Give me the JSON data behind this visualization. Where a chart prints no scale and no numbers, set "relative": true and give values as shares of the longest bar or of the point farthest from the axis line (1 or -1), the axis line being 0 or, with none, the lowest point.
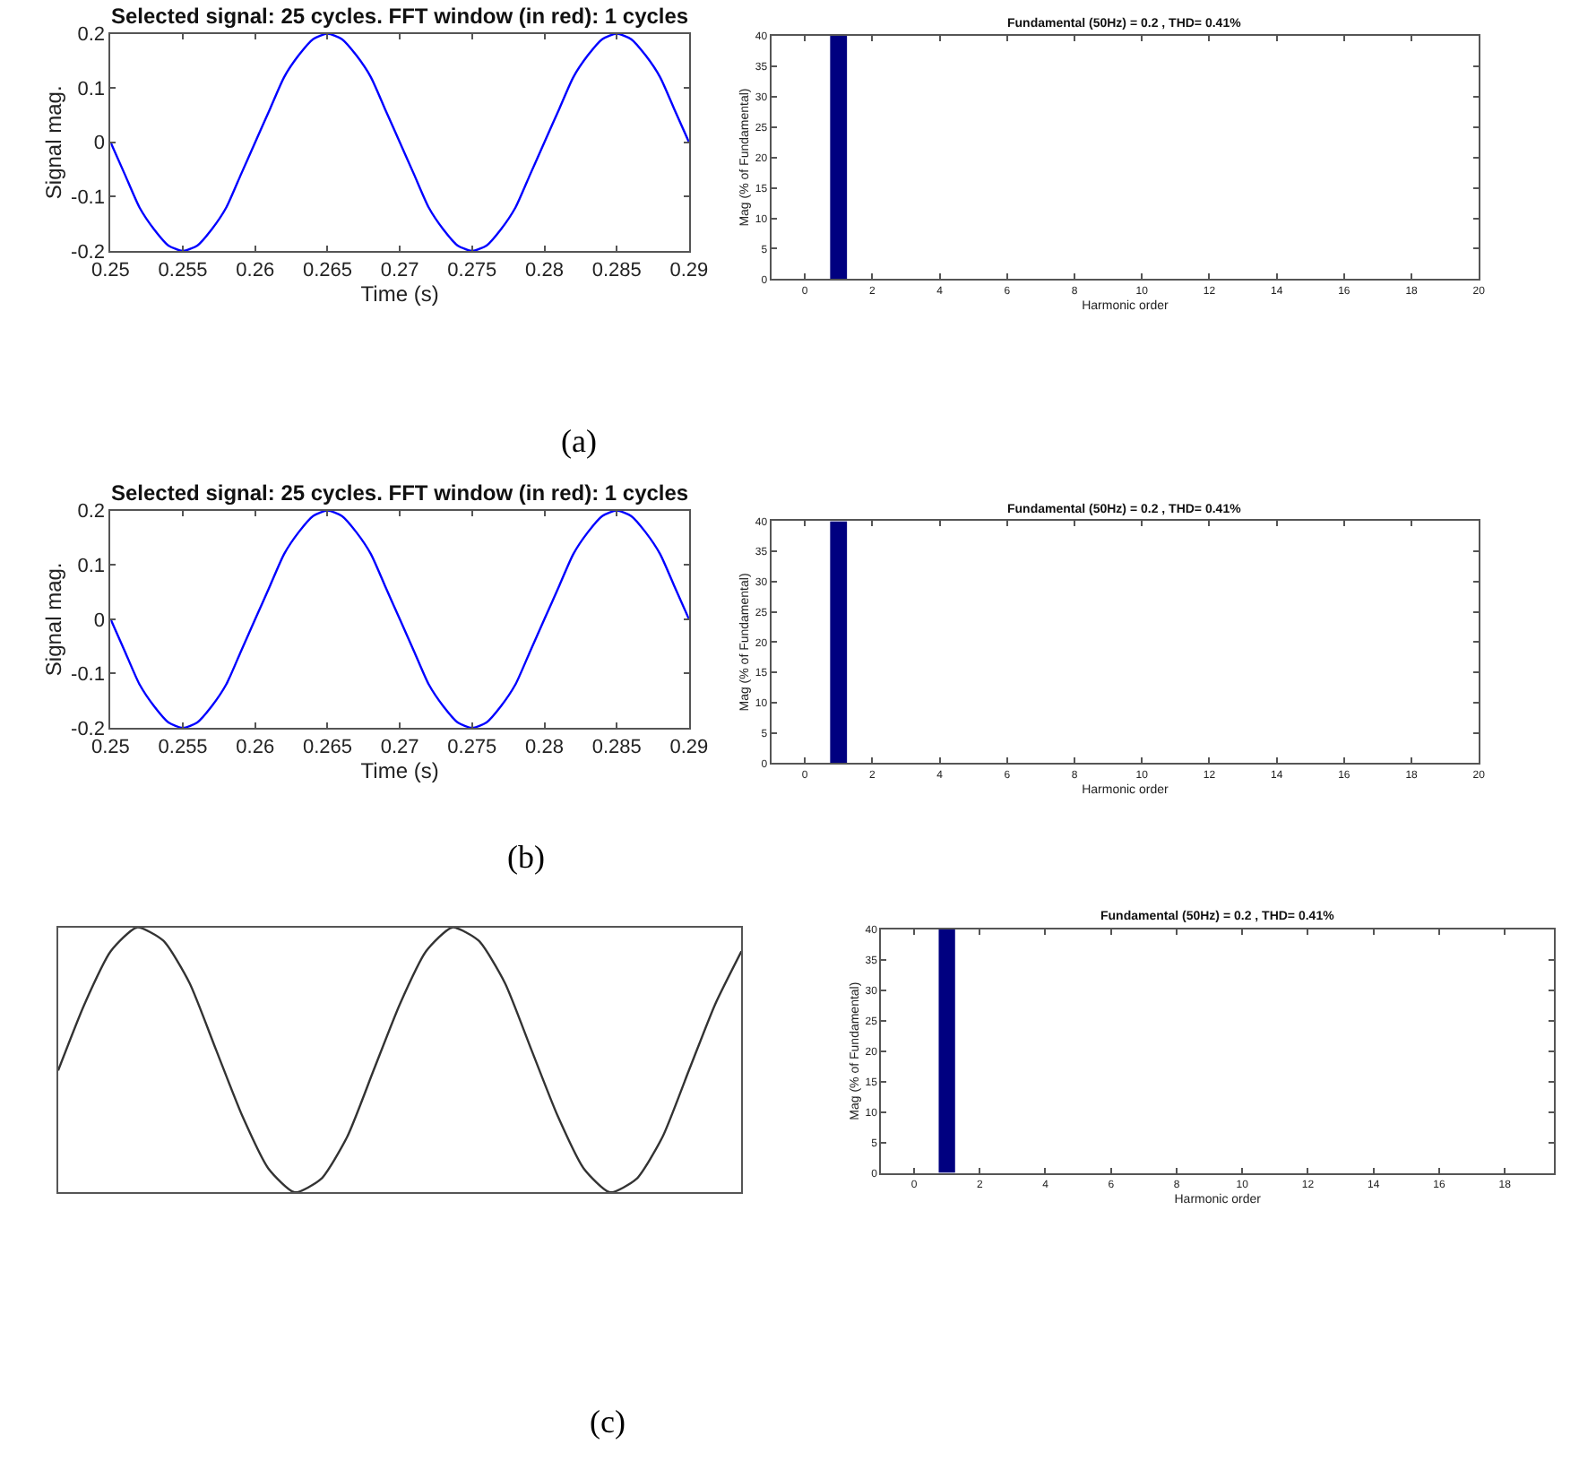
{
  "chart_data": [
    {
      "type": "line",
      "title": "Selected signal: 25 cycles. FFT window (in red): 1 cycles",
      "xlabel": "Time (s)",
      "ylabel": "Signal mag.",
      "x": [
        0.25,
        0.251,
        0.252,
        0.253,
        0.254,
        0.255,
        0.256,
        0.257,
        0.258,
        0.259,
        0.26,
        0.261,
        0.262,
        0.263,
        0.264,
        0.265,
        0.266,
        0.267,
        0.268,
        0.269,
        0.27,
        0.271,
        0.272,
        0.273,
        0.274,
        0.275,
        0.276,
        0.277,
        0.278,
        0.279,
        0.28,
        0.281,
        0.282,
        0.283,
        0.284,
        0.285,
        0.286,
        0.287,
        0.288,
        0.289,
        0.29
      ],
      "series": [
        {
          "color": "#0000ff",
          "values": [
            0,
            -0.06,
            -0.12,
            -0.16,
            -0.19,
            -0.2,
            -0.19,
            -0.16,
            -0.12,
            -0.06,
            0,
            0.06,
            0.12,
            0.16,
            0.19,
            0.2,
            0.19,
            0.16,
            0.12,
            0.06,
            0,
            -0.06,
            -0.12,
            -0.16,
            -0.19,
            -0.2,
            -0.19,
            -0.16,
            -0.12,
            -0.06,
            0,
            0.06,
            0.12,
            0.16,
            0.19,
            0.2,
            0.19,
            0.16,
            0.12,
            0.06,
            0
          ]
        }
      ],
      "xlim": [
        0.25,
        0.29
      ],
      "xticks": [
        0.25,
        0.255,
        0.26,
        0.265,
        0.27,
        0.275,
        0.28,
        0.285,
        0.29
      ],
      "ylim": [
        -0.2,
        0.2
      ],
      "yticks": [
        -0.2,
        -0.1,
        0,
        0.1,
        0.2
      ],
      "annotations": [
        "(a)"
      ]
    },
    {
      "type": "bar",
      "title": "Fundamental (50Hz) = 0.2 , THD= 0.41%",
      "xlabel": "Harmonic order",
      "ylabel": "Mag (% of Fundamental)",
      "x": [
        1
      ],
      "values": [
        40
      ],
      "color": "#000080",
      "xlim": [
        -1,
        20
      ],
      "xticks": [
        0,
        2,
        4,
        6,
        8,
        10,
        12,
        14,
        16,
        18,
        20
      ],
      "ylim": [
        0,
        40
      ],
      "yticks": [
        0,
        5,
        10,
        15,
        20,
        25,
        30,
        35,
        40
      ]
    },
    {
      "type": "line",
      "title": "Selected signal: 25 cycles. FFT window (in red): 1 cycles",
      "xlabel": "Time (s)",
      "ylabel": "Signal mag.",
      "x": [
        0.25,
        0.251,
        0.252,
        0.253,
        0.254,
        0.255,
        0.256,
        0.257,
        0.258,
        0.259,
        0.26,
        0.261,
        0.262,
        0.263,
        0.264,
        0.265,
        0.266,
        0.267,
        0.268,
        0.269,
        0.27,
        0.271,
        0.272,
        0.273,
        0.274,
        0.275,
        0.276,
        0.277,
        0.278,
        0.279,
        0.28,
        0.281,
        0.282,
        0.283,
        0.284,
        0.285,
        0.286,
        0.287,
        0.288,
        0.289,
        0.29
      ],
      "series": [
        {
          "color": "#0000ff",
          "values": [
            0,
            -0.06,
            -0.12,
            -0.16,
            -0.19,
            -0.2,
            -0.19,
            -0.16,
            -0.12,
            -0.06,
            0,
            0.06,
            0.12,
            0.16,
            0.19,
            0.2,
            0.19,
            0.16,
            0.12,
            0.06,
            0,
            -0.06,
            -0.12,
            -0.16,
            -0.19,
            -0.2,
            -0.19,
            -0.16,
            -0.12,
            -0.06,
            0,
            0.06,
            0.12,
            0.16,
            0.19,
            0.2,
            0.19,
            0.16,
            0.12,
            0.06,
            0
          ]
        }
      ],
      "xlim": [
        0.25,
        0.29
      ],
      "xticks": [
        0.25,
        0.255,
        0.26,
        0.265,
        0.27,
        0.275,
        0.28,
        0.285,
        0.29
      ],
      "ylim": [
        -0.2,
        0.2
      ],
      "yticks": [
        -0.2,
        -0.1,
        0,
        0.1,
        0.2
      ],
      "annotations": [
        "(b)"
      ]
    },
    {
      "type": "bar",
      "title": "Fundamental (50Hz) = 0.2 , THD= 0.41%",
      "xlabel": "Harmonic order",
      "ylabel": "Mag (% of Fundamental)",
      "x": [
        1
      ],
      "values": [
        40
      ],
      "color": "#000080",
      "xlim": [
        -1,
        20
      ],
      "xticks": [
        0,
        2,
        4,
        6,
        8,
        10,
        12,
        14,
        16,
        18,
        20
      ],
      "ylim": [
        0,
        40
      ],
      "yticks": [
        0,
        5,
        10,
        15,
        20,
        25,
        30,
        35,
        40
      ]
    },
    {
      "type": "line",
      "relative": true,
      "categories": [
        null,
        null,
        null,
        null,
        null,
        null,
        null,
        null,
        null,
        null,
        null,
        null,
        null,
        null,
        null,
        null,
        null,
        null,
        null,
        null,
        null,
        null,
        null,
        null,
        null,
        null,
        null
      ],
      "series": [
        {
          "color": "#333333",
          "values": [
            0.46,
            0.71,
            0.91,
            1.0,
            0.95,
            0.79,
            0.54,
            0.29,
            0.09,
            0.0,
            0.05,
            0.21,
            0.46,
            0.71,
            0.91,
            1.0,
            0.95,
            0.79,
            0.54,
            0.29,
            0.09,
            0.0,
            0.05,
            0.21,
            0.46,
            0.71,
            0.91
          ]
        }
      ],
      "annotations": [
        "(c)"
      ]
    },
    {
      "type": "bar",
      "title": "Fundamental (50Hz) = 0.2 , THD= 0.41%",
      "xlabel": "Harmonic order",
      "ylabel": "Mag (% of Fundamental)",
      "x": [
        1
      ],
      "values": [
        40
      ],
      "color": "#000080",
      "xlim": [
        -1,
        19.5
      ],
      "xticks": [
        0,
        2,
        4,
        6,
        8,
        10,
        12,
        14,
        16,
        18
      ],
      "ylim": [
        0,
        40
      ],
      "yticks": [
        0,
        5,
        10,
        15,
        20,
        25,
        30,
        35,
        40
      ]
    }
  ]
}
